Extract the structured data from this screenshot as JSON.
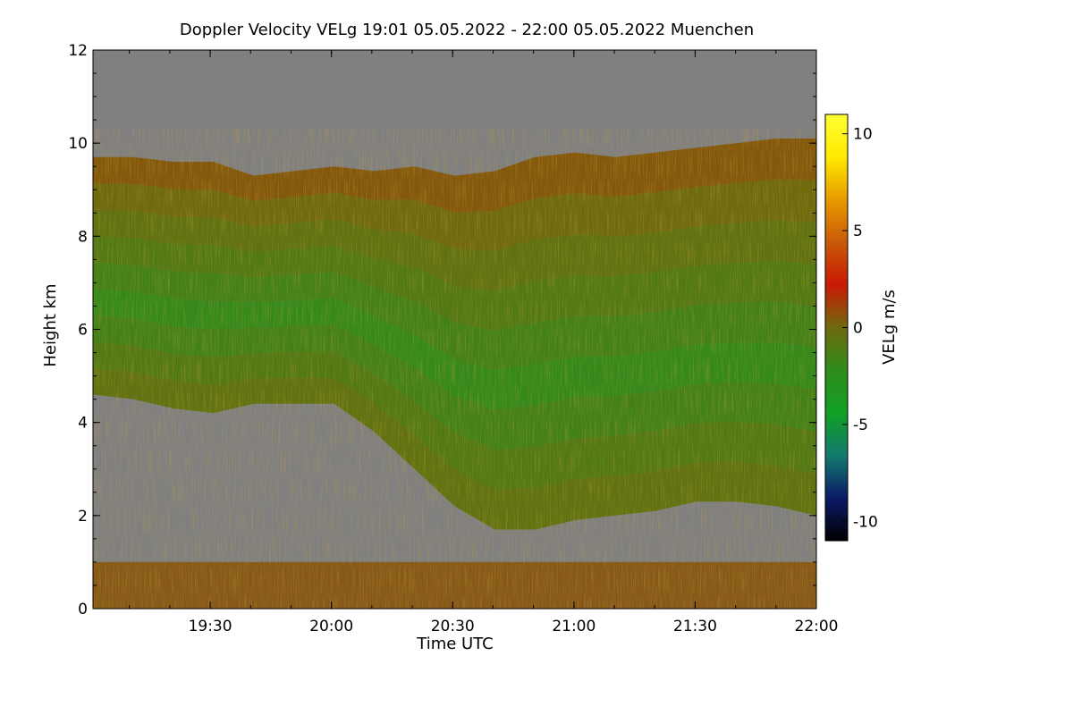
{
  "chart_data": {
    "type": "heatmap",
    "title": "Doppler Velocity VELg   19:01 05.05.2022 - 22:00 05.05.2022 Muenchen",
    "xlabel": "Time UTC",
    "ylabel": "Height km",
    "colorbar_label": "VELg m/s",
    "x_range": [
      "19:01",
      "22:00"
    ],
    "x_ticks": [
      "19:30",
      "20:00",
      "20:30",
      "21:00",
      "21:30",
      "22:00"
    ],
    "ylim": [
      0,
      12
    ],
    "y_ticks": [
      "0",
      "2",
      "4",
      "6",
      "8",
      "10",
      "12"
    ],
    "y_tick_values": [
      0,
      2,
      4,
      6,
      8,
      10,
      12
    ],
    "colorbar_range": [
      -11,
      11
    ],
    "colorbar_ticks": [
      "-10",
      "-5",
      "0",
      "5",
      "10"
    ],
    "colorbar_tick_values": [
      -10,
      -5,
      0,
      5,
      10
    ],
    "colormap": [
      "#000000",
      "#0b1a66",
      "#137a6e",
      "#12a024",
      "#2f8c1c",
      "#6f6a0e",
      "#c81a06",
      "#c95a08",
      "#e79a00",
      "#ffea00",
      "#ffff33"
    ],
    "no_data_color": "#808080",
    "cloud_top_km": [
      9.7,
      9.7,
      9.6,
      9.6,
      9.3,
      9.4,
      9.5,
      9.4,
      9.5,
      9.3,
      9.4,
      9.7,
      9.8,
      9.7,
      9.8,
      9.9,
      10.0,
      10.1,
      10.1
    ],
    "cloud_base_km": [
      4.6,
      4.5,
      4.3,
      4.2,
      4.4,
      4.4,
      4.4,
      3.8,
      3.0,
      2.2,
      1.7,
      1.7,
      1.9,
      2.0,
      2.1,
      2.3,
      2.3,
      2.2,
      2.0
    ],
    "layer_velocity_ms": [
      0.5,
      0.0,
      -0.5,
      -1.0,
      -1.5,
      -2.0,
      -1.5,
      -1.0,
      -0.5
    ]
  }
}
